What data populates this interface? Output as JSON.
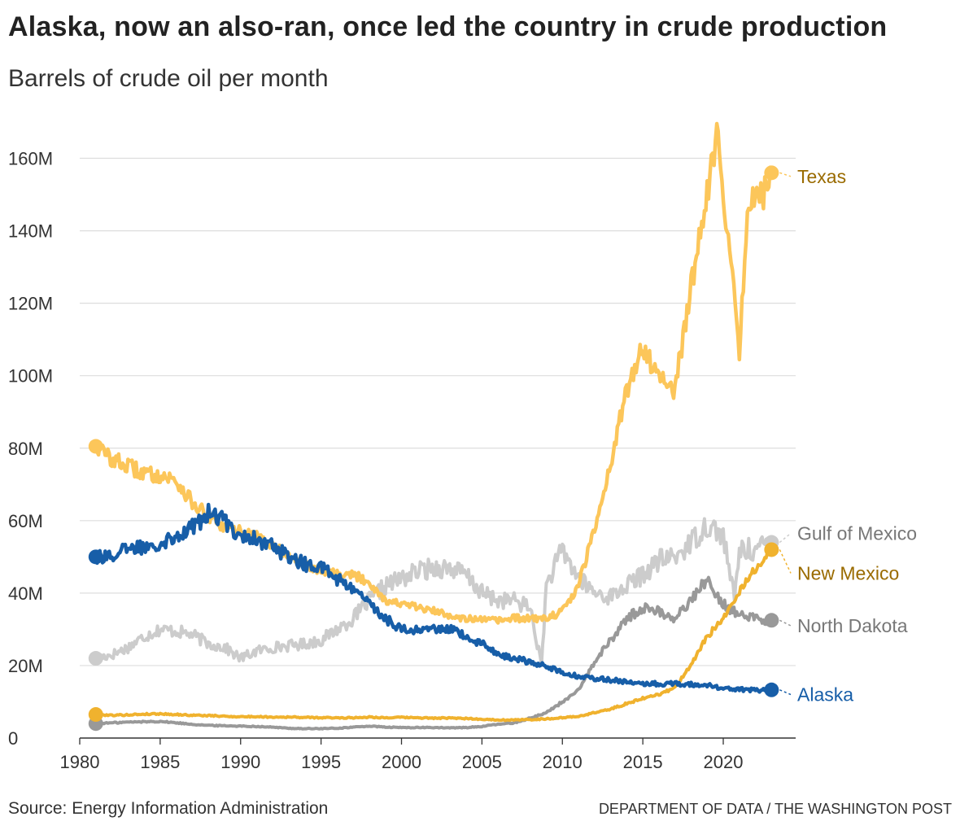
{
  "title": "Alaska, now an also-ran, once led the country in crude production",
  "subtitle": "Barrels of crude oil per month",
  "source": "Source: Energy Information Administration",
  "credit": "DEPARTMENT OF DATA / THE WASHINGTON POST",
  "chart_data": {
    "type": "line",
    "title": "Alaska, now an also-ran, once led the country in crude production",
    "ylabel": "Barrels of crude oil per month",
    "xlabel": "",
    "xlim": [
      1980,
      2024.5
    ],
    "ylim": [
      0,
      170000000
    ],
    "grid": true,
    "x_ticks": [
      1980,
      1985,
      1990,
      1995,
      2000,
      2005,
      2010,
      2015,
      2020
    ],
    "x_tick_labels": [
      "1980",
      "1985",
      "1990",
      "1995",
      "2000",
      "2005",
      "2010",
      "2015",
      "2020"
    ],
    "y_ticks": [
      0,
      20000000,
      40000000,
      60000000,
      80000000,
      100000000,
      120000000,
      140000000,
      160000000
    ],
    "y_tick_labels": [
      "0",
      "20M",
      "40M",
      "60M",
      "80M",
      "100M",
      "120M",
      "140M",
      "160M"
    ],
    "series": [
      {
        "name": "Gulf of Mexico",
        "label": "Gulf of Mexico",
        "color": "#cccccc",
        "label_color": "#777777",
        "points": [
          [
            1981,
            22
          ],
          [
            1982,
            23
          ],
          [
            1983,
            25
          ],
          [
            1984,
            28
          ],
          [
            1985,
            30
          ],
          [
            1986,
            29.5
          ],
          [
            1987,
            28.5
          ],
          [
            1988,
            26
          ],
          [
            1989,
            25
          ],
          [
            1990,
            22
          ],
          [
            1991,
            24
          ],
          [
            1992,
            25
          ],
          [
            1993,
            25.5
          ],
          [
            1994,
            26
          ],
          [
            1995,
            27
          ],
          [
            1996,
            30
          ],
          [
            1997,
            33
          ],
          [
            1998,
            38
          ],
          [
            1999,
            42
          ],
          [
            2000,
            44
          ],
          [
            2001,
            46
          ],
          [
            2002,
            47
          ],
          [
            2003,
            47
          ],
          [
            2004,
            45
          ],
          [
            2005,
            40
          ],
          [
            2006,
            38
          ],
          [
            2007,
            38
          ],
          [
            2008,
            36
          ],
          [
            2008.7,
            20
          ],
          [
            2009,
            42
          ],
          [
            2010,
            52
          ],
          [
            2011,
            44
          ],
          [
            2012,
            40
          ],
          [
            2013,
            39
          ],
          [
            2014,
            42
          ],
          [
            2015,
            45
          ],
          [
            2016,
            49
          ],
          [
            2017,
            50
          ],
          [
            2018,
            54
          ],
          [
            2019,
            59
          ],
          [
            2020,
            56
          ],
          [
            2020.7,
            38
          ],
          [
            2021,
            52
          ],
          [
            2022,
            52
          ],
          [
            2023,
            54
          ]
        ]
      },
      {
        "name": "North Dakota",
        "label": "North Dakota",
        "color": "#999999",
        "label_color": "#777777",
        "points": [
          [
            1981,
            4
          ],
          [
            1982,
            4.2
          ],
          [
            1983,
            4.4
          ],
          [
            1984,
            4.5
          ],
          [
            1985,
            4.6
          ],
          [
            1986,
            4.2
          ],
          [
            1987,
            3.8
          ],
          [
            1988,
            3.5
          ],
          [
            1989,
            3.4
          ],
          [
            1990,
            3.3
          ],
          [
            1991,
            3.2
          ],
          [
            1992,
            3.0
          ],
          [
            1993,
            2.7
          ],
          [
            1994,
            2.6
          ],
          [
            1995,
            2.6
          ],
          [
            1996,
            2.7
          ],
          [
            1997,
            3.0
          ],
          [
            1998,
            3.3
          ],
          [
            1999,
            3.0
          ],
          [
            2000,
            2.9
          ],
          [
            2001,
            2.9
          ],
          [
            2002,
            2.9
          ],
          [
            2003,
            2.8
          ],
          [
            2004,
            2.9
          ],
          [
            2005,
            3.2
          ],
          [
            2006,
            3.8
          ],
          [
            2007,
            4.2
          ],
          [
            2008,
            5.5
          ],
          [
            2009,
            7
          ],
          [
            2010,
            10
          ],
          [
            2011,
            13
          ],
          [
            2012,
            21
          ],
          [
            2013,
            27
          ],
          [
            2014,
            33
          ],
          [
            2015,
            36
          ],
          [
            2016,
            35
          ],
          [
            2017,
            33
          ],
          [
            2018,
            38
          ],
          [
            2019,
            44
          ],
          [
            2020,
            37
          ],
          [
            2021,
            34
          ],
          [
            2022,
            33
          ],
          [
            2023,
            32.5
          ]
        ]
      },
      {
        "name": "New Mexico",
        "label": "New Mexico",
        "color": "#f0b22e",
        "label_color": "#9a6b00",
        "points": [
          [
            1981,
            6.5
          ],
          [
            1982,
            6.3
          ],
          [
            1983,
            6.4
          ],
          [
            1984,
            6.6
          ],
          [
            1985,
            6.7
          ],
          [
            1986,
            6.5
          ],
          [
            1987,
            6.3
          ],
          [
            1988,
            6.2
          ],
          [
            1989,
            6.0
          ],
          [
            1990,
            5.9
          ],
          [
            1991,
            5.9
          ],
          [
            1992,
            5.8
          ],
          [
            1993,
            5.8
          ],
          [
            1994,
            5.7
          ],
          [
            1995,
            5.6
          ],
          [
            1996,
            5.6
          ],
          [
            1997,
            5.6
          ],
          [
            1998,
            5.8
          ],
          [
            1999,
            5.6
          ],
          [
            2000,
            5.7
          ],
          [
            2001,
            5.6
          ],
          [
            2002,
            5.5
          ],
          [
            2003,
            5.5
          ],
          [
            2004,
            5.4
          ],
          [
            2005,
            5.2
          ],
          [
            2006,
            5.0
          ],
          [
            2007,
            5.0
          ],
          [
            2008,
            5.1
          ],
          [
            2009,
            5.3
          ],
          [
            2010,
            5.6
          ],
          [
            2011,
            6.0
          ],
          [
            2012,
            7.0
          ],
          [
            2013,
            8.0
          ],
          [
            2014,
            9.5
          ],
          [
            2015,
            11
          ],
          [
            2016,
            12
          ],
          [
            2017,
            14
          ],
          [
            2018,
            20
          ],
          [
            2019,
            28
          ],
          [
            2020,
            33
          ],
          [
            2021,
            40
          ],
          [
            2022,
            47
          ],
          [
            2023,
            52
          ]
        ]
      },
      {
        "name": "Texas",
        "label": "Texas",
        "color": "#fcc65a",
        "label_color": "#9a6b00",
        "points": [
          [
            1981,
            80.5
          ],
          [
            1982,
            77
          ],
          [
            1983,
            75
          ],
          [
            1984,
            73
          ],
          [
            1985,
            72.5
          ],
          [
            1986,
            71
          ],
          [
            1987,
            65
          ],
          [
            1988,
            61
          ],
          [
            1989,
            58
          ],
          [
            1990,
            57
          ],
          [
            1991,
            56
          ],
          [
            1992,
            53
          ],
          [
            1993,
            50
          ],
          [
            1994,
            48
          ],
          [
            1995,
            46.5
          ],
          [
            1996,
            45.5
          ],
          [
            1997,
            45
          ],
          [
            1998,
            43
          ],
          [
            1999,
            38
          ],
          [
            2000,
            37
          ],
          [
            2001,
            36
          ],
          [
            2002,
            35
          ],
          [
            2003,
            34
          ],
          [
            2004,
            33
          ],
          [
            2005,
            32.5
          ],
          [
            2006,
            32.5
          ],
          [
            2007,
            33
          ],
          [
            2008,
            33
          ],
          [
            2009,
            33
          ],
          [
            2010,
            35
          ],
          [
            2011,
            42
          ],
          [
            2012,
            58
          ],
          [
            2013,
            76
          ],
          [
            2014,
            96
          ],
          [
            2015,
            108
          ],
          [
            2016,
            100
          ],
          [
            2017,
            96
          ],
          [
            2018,
            125
          ],
          [
            2019,
            150
          ],
          [
            2019.6,
            168
          ],
          [
            2020,
            145
          ],
          [
            2020.4,
            135
          ],
          [
            2021,
            106
          ],
          [
            2021.5,
            145
          ],
          [
            2022,
            152
          ],
          [
            2022.5,
            150
          ],
          [
            2023,
            156
          ]
        ]
      },
      {
        "name": "Alaska",
        "label": "Alaska",
        "color": "#175ea8",
        "label_color": "#175ea8",
        "points": [
          [
            1981,
            50
          ],
          [
            1982,
            50.5
          ],
          [
            1983,
            52
          ],
          [
            1984,
            53
          ],
          [
            1985,
            54
          ],
          [
            1986,
            56
          ],
          [
            1987,
            58
          ],
          [
            1988,
            62
          ],
          [
            1989,
            60
          ],
          [
            1990,
            56
          ],
          [
            1991,
            55
          ],
          [
            1992,
            53
          ],
          [
            1993,
            50
          ],
          [
            1994,
            48
          ],
          [
            1995,
            47
          ],
          [
            1996,
            44
          ],
          [
            1997,
            41
          ],
          [
            1998,
            37
          ],
          [
            1999,
            33
          ],
          [
            2000,
            30
          ],
          [
            2001,
            30
          ],
          [
            2002,
            30
          ],
          [
            2003,
            30
          ],
          [
            2004,
            28
          ],
          [
            2005,
            26
          ],
          [
            2006,
            23
          ],
          [
            2007,
            22
          ],
          [
            2008,
            21
          ],
          [
            2009,
            20
          ],
          [
            2010,
            18
          ],
          [
            2011,
            17
          ],
          [
            2012,
            16.5
          ],
          [
            2013,
            16
          ],
          [
            2014,
            15.5
          ],
          [
            2015,
            15
          ],
          [
            2016,
            15
          ],
          [
            2017,
            15
          ],
          [
            2018,
            14.8
          ],
          [
            2019,
            14.5
          ],
          [
            2020,
            13.8
          ],
          [
            2021,
            13.5
          ],
          [
            2022,
            13.2
          ],
          [
            2023,
            13.3
          ]
        ]
      }
    ],
    "units": "millions of barrels"
  }
}
